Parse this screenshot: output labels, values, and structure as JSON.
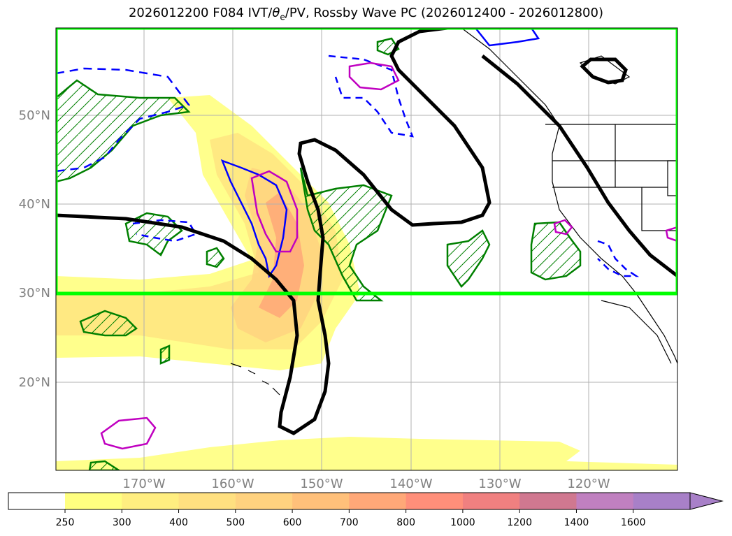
{
  "title": {
    "prefix": "2026012200 F084 IVT/",
    "theta": "θ",
    "theta_sub": "e",
    "suffix": "/PV, Rossby Wave PC (2026012400 - 2026012800)"
  },
  "map": {
    "lat_labels": [
      "50°N",
      "40°N",
      "30°N",
      "20°N"
    ],
    "lon_labels": [
      "170°W",
      "160°W",
      "150°W",
      "140°W",
      "130°W",
      "120°W"
    ],
    "box_color": "#00ff00",
    "colors": {
      "ivt_low": "#ffff80",
      "ivt_mid": "#ffd27f",
      "ivt_high": "#ff9f70",
      "pv_contour": "#0000ff",
      "theta_e_contour": "#008000",
      "magenta_contour": "#c000c0",
      "rossby_pc": "#000000"
    }
  },
  "colorbar": {
    "ticks": [
      "250",
      "300",
      "400",
      "500",
      "600",
      "700",
      "800",
      "1000",
      "1200",
      "1400",
      "1600"
    ],
    "colors": [
      "#ffff80",
      "#ffee80",
      "#ffe080",
      "#ffd27f",
      "#ffc07a",
      "#ffa878",
      "#ff8f7a",
      "#f08080",
      "#d07890",
      "#c080c0",
      "#a880c8"
    ]
  }
}
